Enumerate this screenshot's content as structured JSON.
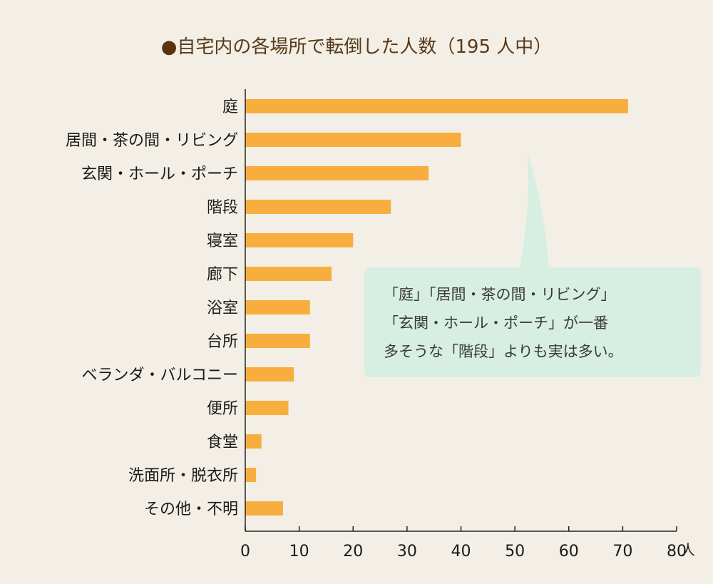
{
  "title": "自宅内の各場所で転倒した人数（195 人中）",
  "title_bullet": "●",
  "colors": {
    "background": "#f3efe6",
    "bar": "#f8ae3e",
    "axis": "#222222",
    "callout_bg": "#d7eee2",
    "title_text": "#5a3a1a"
  },
  "callout": {
    "lines": [
      "「庭」「居間・茶の間・リビング」",
      "「玄関・ホール・ポーチ」が一番",
      "多そうな「階段」よりも実は多い。"
    ]
  },
  "chart_data": {
    "type": "bar",
    "orientation": "horizontal",
    "title": "自宅内の各場所で転倒した人数（195 人中）",
    "categories": [
      "庭",
      "居間・茶の間・リビング",
      "玄関・ホール・ポーチ",
      "階段",
      "寝室",
      "廊下",
      "浴室",
      "台所",
      "ベランダ・バルコニー",
      "便所",
      "食堂",
      "洗面所・脱衣所",
      "その他・不明"
    ],
    "values": [
      71,
      40,
      34,
      27,
      20,
      16,
      12,
      12,
      9,
      8,
      3,
      2,
      7
    ],
    "xlim": [
      0,
      80
    ],
    "xticks": [
      0,
      10,
      20,
      30,
      40,
      50,
      60,
      70,
      80
    ],
    "xunit": "人",
    "xlabel": "",
    "ylabel": "",
    "grid": false,
    "legend": "none"
  }
}
